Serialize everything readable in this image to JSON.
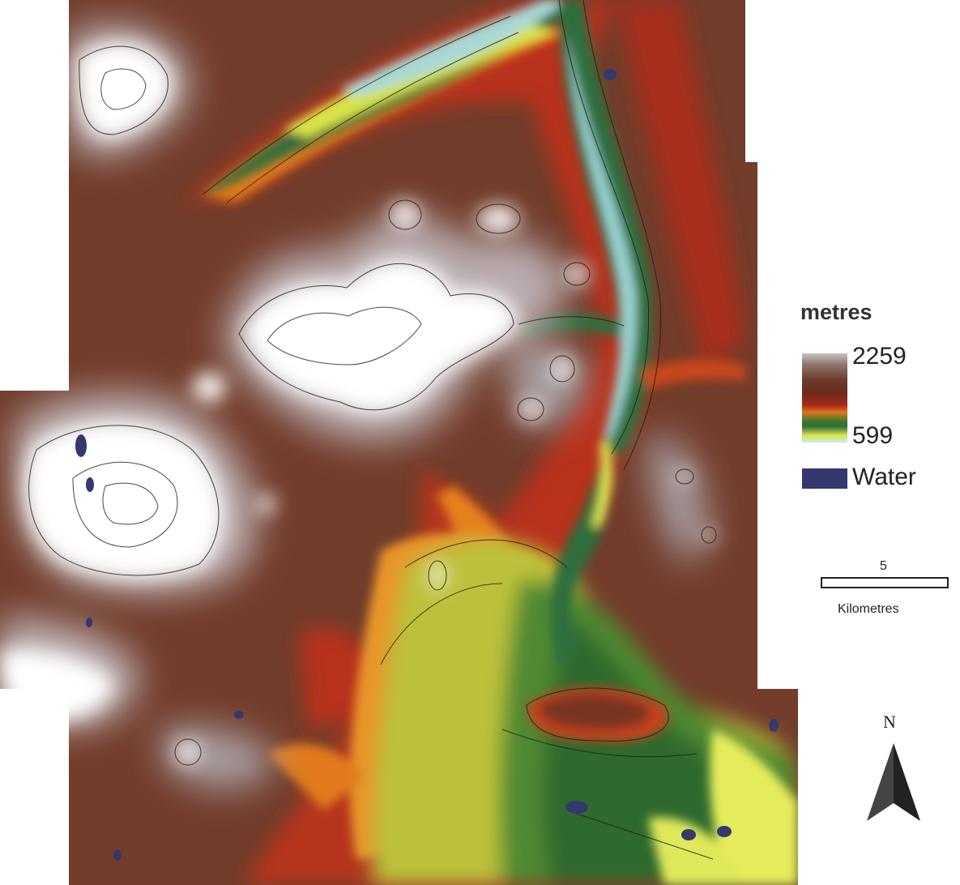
{
  "legend": {
    "title": "metres",
    "max_label": "2259",
    "min_label": "599",
    "water_label": "Water",
    "colors": {
      "high_snow": "#f4f2f4",
      "high_grey": "#b8b2b6",
      "brown": "#6d3a28",
      "dark_red": "#8a2a1a",
      "orange": "#e3781e",
      "yellow_green": "#b9c23a",
      "green": "#3e7a2e",
      "dark_green": "#2a5a2e",
      "light_yellow": "#e8ef5a",
      "valley_cyan": "#a8d8d6",
      "water": "#34386e"
    }
  },
  "scale_bar": {
    "value": "5",
    "unit": "Kilometres"
  },
  "north_arrow": {
    "label": "N"
  }
}
